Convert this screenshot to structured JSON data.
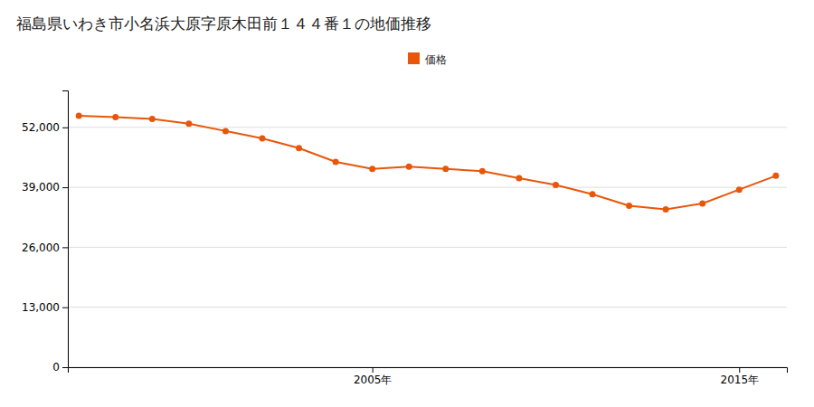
{
  "chart_data": {
    "type": "line",
    "title": "福島県いわき市小名浜大原字原木田前１４４番１の地価推移",
    "x": [
      1997,
      1998,
      1999,
      2000,
      2001,
      2002,
      2003,
      2004,
      2005,
      2006,
      2007,
      2008,
      2009,
      2010,
      2011,
      2012,
      2013,
      2014,
      2015,
      2016
    ],
    "series": [
      {
        "name": "価格",
        "color": "#e8560a",
        "marker": "circle",
        "values": [
          54500,
          54200,
          53800,
          52800,
          51200,
          49600,
          47500,
          44500,
          43000,
          43500,
          43000,
          42500,
          41000,
          39500,
          37500,
          35000,
          34200,
          35500,
          38500,
          41500
        ]
      }
    ],
    "xlim": [
      1996.7,
      2016.3
    ],
    "xticks": [
      {
        "value": 2005,
        "label": "2005年"
      },
      {
        "value": 2015,
        "label": "2015年"
      }
    ],
    "ylim": [
      0,
      60000
    ],
    "yticks": [
      0,
      {
        "value": 13000,
        "label": "13,000"
      },
      {
        "value": 26000,
        "label": "26,000"
      },
      {
        "value": 39000,
        "label": "39,000"
      },
      {
        "value": 52000,
        "label": "52,000"
      }
    ],
    "grid": "y",
    "legend": "top"
  }
}
